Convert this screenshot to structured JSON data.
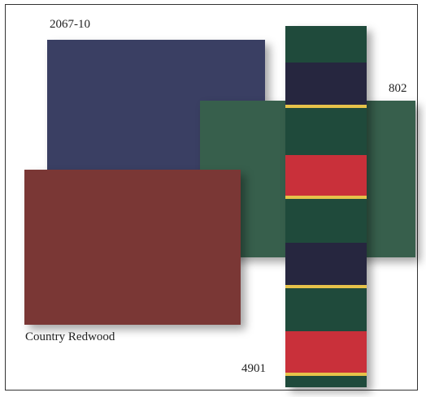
{
  "swatches": {
    "navy": {
      "code": "2067-10",
      "color": "#3a3f63"
    },
    "green": {
      "code": "802",
      "color": "#375f4c"
    },
    "red": {
      "code": "Country Redwood",
      "color": "#7a3735"
    }
  },
  "strip": {
    "code": "4901",
    "colors": {
      "green": "#1f4a3b",
      "navy": "#26263f",
      "red": "#c9303a",
      "yellow": "#e6c24a"
    }
  }
}
